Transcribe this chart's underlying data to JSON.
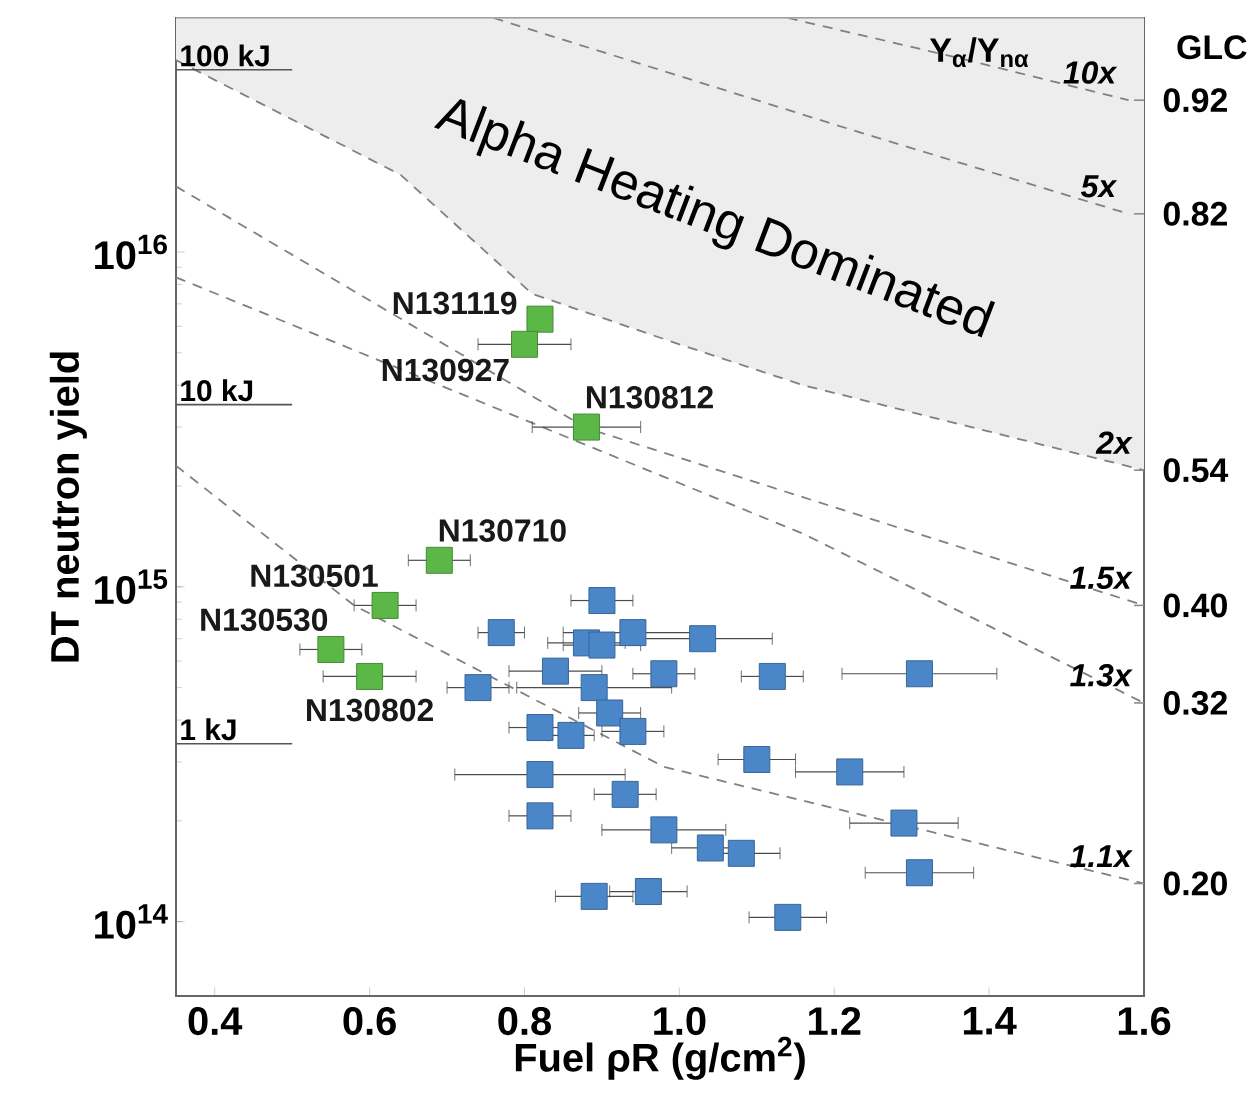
{
  "chart_data": {
    "type": "scatter",
    "xlabel": "Fuel ρR (g/cm$^{2}$)",
    "ylabel": "DT neutron yield",
    "log": "y",
    "xlim": [
      0.35,
      1.6
    ],
    "ylim": [
      60000000000000.0,
      5e+16
    ],
    "xticks": [
      0.4,
      0.6,
      0.8,
      {
        "value": 1,
        "label": "1.0"
      },
      1.2,
      1.4,
      1.6
    ],
    "yticks": [
      {
        "value": 100000000000000.0,
        "label": "10$^{14}$"
      },
      {
        "value": 1000000000000000.0,
        "label": "10$^{15}$"
      },
      {
        "value": 1e+16,
        "label": "10$^{16}$"
      }
    ],
    "grid": false,
    "marker": "square",
    "ref_lines": [
      {
        "axis": "y",
        "value": 3.5e+16,
        "label": "100 kJ",
        "color": "#555555"
      },
      {
        "axis": "y",
        "value": 3500000000000000.0,
        "label": "10 kJ",
        "color": "#555555"
      },
      {
        "axis": "y",
        "value": 340000000000000.0,
        "label": "1 kJ",
        "color": "#555555"
      }
    ],
    "series": [
      {
        "name": "10x",
        "type": "line",
        "marker": "none",
        "line_style": "dashed",
        "color": "#808080",
        "x": [
          1.14,
          1.36,
          1.58
        ],
        "values": [
          5e+16,
          3.8e+16,
          2.84e+16
        ]
      },
      {
        "name": "5x",
        "type": "line",
        "marker": "none",
        "line_style": "dashed",
        "color": "#808080",
        "x": [
          0.76,
          1.24,
          1.58
        ],
        "values": [
          5e+16,
          2.25e+16,
          1.3e+16
        ]
      },
      {
        "name": "2x",
        "type": "line",
        "marker": "none",
        "line_style": "dashed",
        "color": "#808080",
        "x": [
          0.35,
          0.64,
          0.81,
          1.0,
          1.16,
          1.6
        ],
        "values": [
          3.74e+16,
          1.7e+16,
          7500000000000000.0,
          5300000000000000.0,
          4000000000000000.0,
          2230000000000000.0
        ],
        "lower": [
          3.74e+16,
          1.7e+16,
          7500000000000000.0,
          5300000000000000.0,
          4000000000000000.0,
          2230000000000000.0
        ],
        "upper": [
          5e+16,
          5e+16,
          5e+16,
          5e+16,
          5e+16,
          5e+16
        ]
      },
      {
        "name": "1.5x",
        "type": "line",
        "marker": "none",
        "line_style": "dashed",
        "color": "#808080",
        "x": [
          0.35,
          0.88,
          1.21,
          1.6
        ],
        "values": [
          1.57e+16,
          2980000000000000.0,
          1700000000000000.0,
          880000000000000.0
        ]
      },
      {
        "name": "1.3x",
        "type": "line",
        "marker": "none",
        "line_style": "dashed",
        "color": "#808080",
        "x": [
          0.35,
          1.16,
          1.6
        ],
        "values": [
          8400000000000000.0,
          1440000000000000.0,
          450000000000000.0
        ]
      },
      {
        "name": "1.1x",
        "type": "line",
        "marker": "none",
        "line_style": "dashed",
        "color": "#808080",
        "x": [
          0.35,
          0.58,
          0.98,
          1.6
        ],
        "values": [
          2300000000000000.0,
          880000000000000.0,
          290000000000000.0,
          130000000000000.0
        ]
      },
      {
        "color": "#5cb846",
        "x": [
          0.82,
          0.8,
          0.88,
          0.69,
          0.62,
          0.55,
          0.6
        ],
        "values": [
          6300000000000000.0,
          5300000000000000.0,
          3000000000000000.0,
          1200000000000000.0,
          880000000000000.0,
          650000000000000.0,
          540000000000000.0
        ],
        "xerrors": [
          null,
          0.06,
          0.07,
          0.04,
          0.04,
          0.04,
          0.06
        ]
      },
      {
        "color": "#4a86c8",
        "x": [
          0.9,
          0.77,
          0.88,
          0.9,
          0.94,
          1.03,
          0.84,
          0.98,
          1.12,
          1.31,
          0.74,
          0.89,
          0.91,
          0.82,
          0.86,
          0.94,
          1.1,
          1.22,
          0.82,
          0.93,
          0.82,
          1.29,
          0.98,
          1.04,
          1.08,
          1.31,
          0.96,
          0.89,
          1.14
        ],
        "values": [
          910000000000000.0,
          730000000000000.0,
          680000000000000.0,
          670000000000000.0,
          730000000000000.0,
          700000000000000.0,
          560000000000000.0,
          550000000000000.0,
          540000000000000.0,
          550000000000000.0,
          500000000000000.0,
          500000000000000.0,
          420000000000000.0,
          380000000000000.0,
          360000000000000.0,
          370000000000000.0,
          305000000000000.0,
          280000000000000.0,
          275000000000000.0,
          240000000000000.0,
          207000000000000.0,
          197000000000000.0,
          188000000000000.0,
          166000000000000.0,
          160000000000000.0,
          140000000000000.0,
          123000000000000.0,
          119000000000000.0,
          103000000000000.0
        ],
        "xerrors": [
          0.04,
          0.03,
          0.05,
          0.05,
          0.09,
          0.09,
          0.06,
          0.04,
          0.04,
          0.1,
          0.04,
          0.1,
          0.04,
          0.04,
          0.03,
          0.04,
          0.05,
          0.07,
          0.11,
          0.04,
          0.04,
          0.07,
          0.08,
          0.05,
          0.05,
          0.07,
          0.05,
          0.05,
          0.05
        ]
      }
    ],
    "annotations": [
      "Alpha Heating Dominated",
      "Y$_{α}$/Y$_{nα}$",
      "GLC",
      {
        "text": "N131119",
        "x": 0.82,
        "y": 6300000000000000.0
      },
      {
        "text": "N130927",
        "x": 0.8,
        "y": 5300000000000000.0
      },
      {
        "text": "N130812",
        "x": 0.88,
        "y": 3000000000000000.0
      },
      {
        "text": "N130710",
        "x": 0.69,
        "y": 1200000000000000.0
      },
      {
        "text": "N130501",
        "x": 0.62,
        "y": 880000000000000.0
      },
      {
        "text": "N130530",
        "x": 0.55,
        "y": 650000000000000.0
      },
      {
        "text": "N130802",
        "x": 0.6,
        "y": 540000000000000.0
      },
      {
        "text": "0.92",
        "x": 1.6,
        "y": 2.84e+16
      },
      {
        "text": "0.82",
        "x": 1.6,
        "y": 1.3e+16
      },
      {
        "text": "0.54",
        "x": 1.6,
        "y": 2230000000000000.0
      },
      {
        "text": "0.40",
        "x": 1.6,
        "y": 880000000000000.0
      },
      {
        "text": "0.32",
        "x": 1.6,
        "y": 450000000000000.0
      },
      {
        "text": "0.20",
        "x": 1.6,
        "y": 130000000000000.0
      }
    ]
  }
}
